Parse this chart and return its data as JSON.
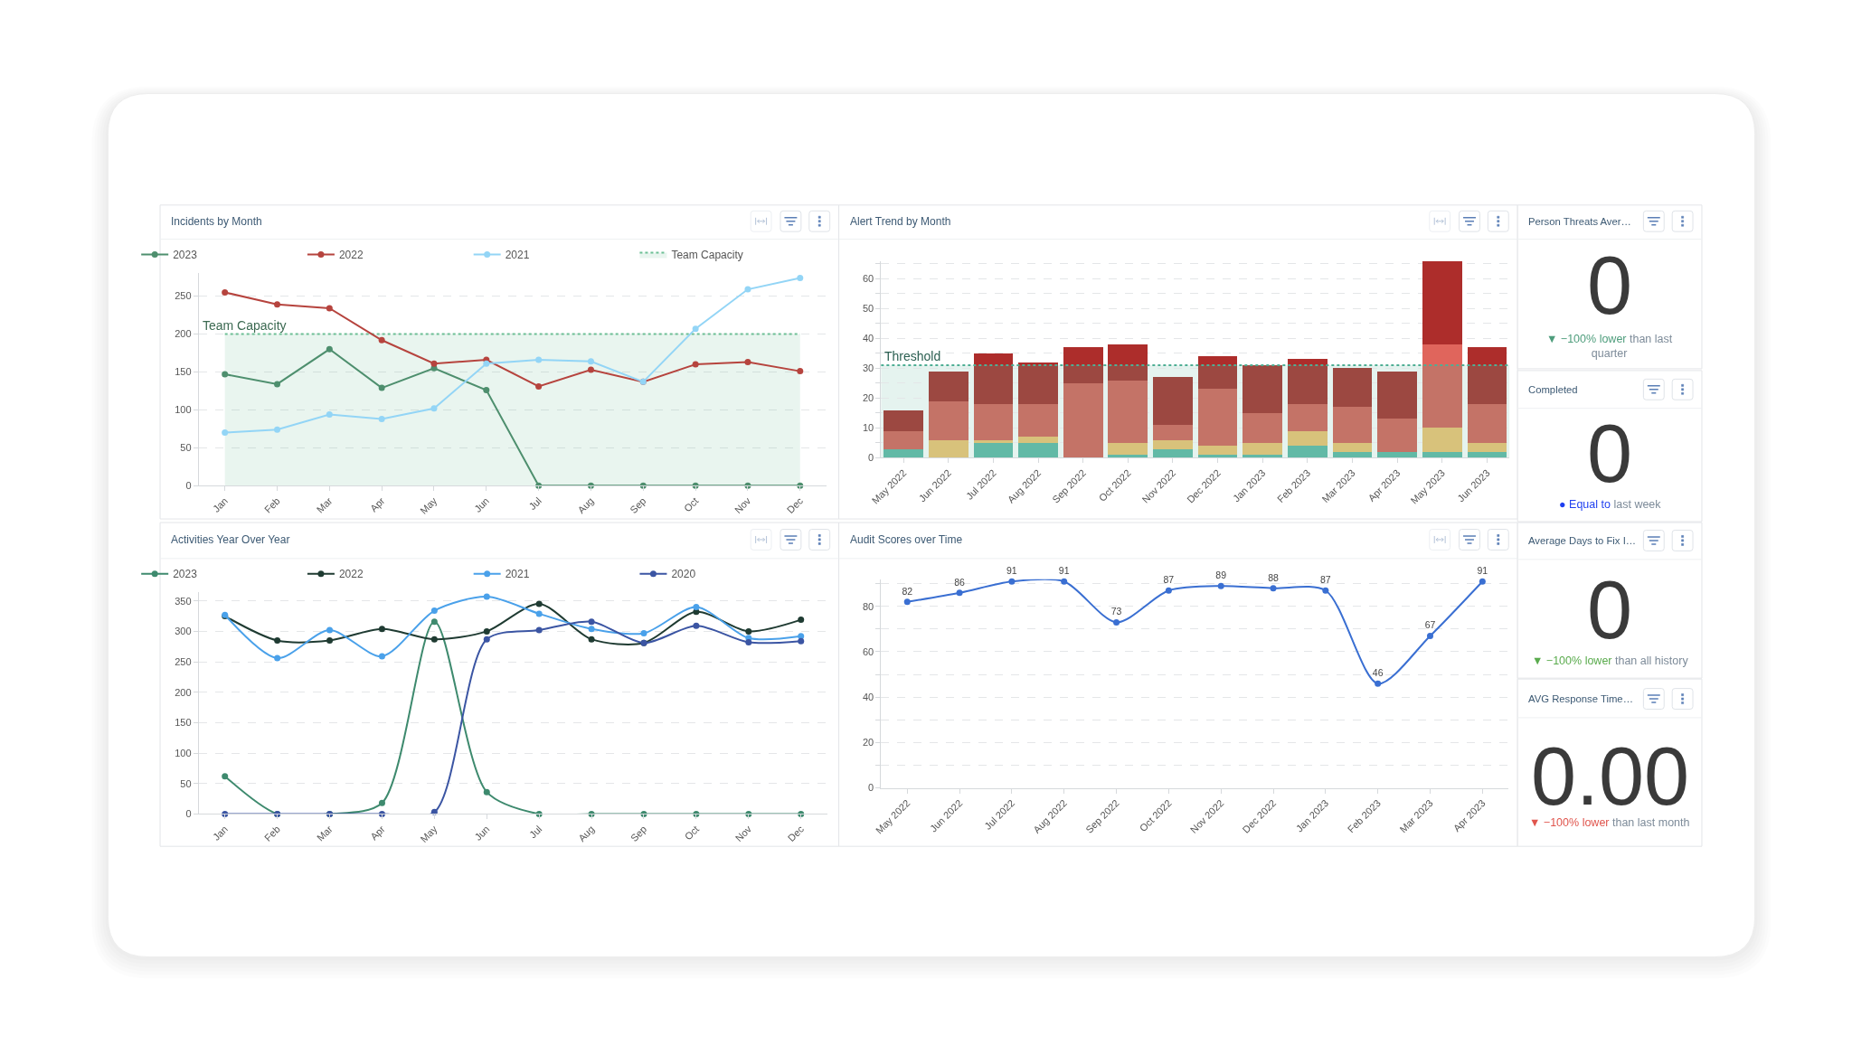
{
  "chart_data": [
    {
      "type": "line",
      "title": "Incidents by Month",
      "categories": [
        "Jan",
        "Feb",
        "Mar",
        "Apr",
        "May",
        "Jun",
        "Jul",
        "Aug",
        "Sep",
        "Oct",
        "Nov",
        "Dec"
      ],
      "series": [
        {
          "name": "2023",
          "color": "#4e8f6e",
          "values": [
            147,
            134,
            180,
            129,
            155,
            126,
            0,
            0,
            0,
            0,
            0,
            0
          ]
        },
        {
          "name": "2022",
          "color": "#b6443e",
          "values": [
            255,
            239,
            234,
            192,
            161,
            166,
            131,
            153,
            137,
            160,
            163,
            151
          ]
        },
        {
          "name": "2021",
          "color": "#93d5f6",
          "values": [
            70,
            74,
            94,
            88,
            102,
            161,
            166,
            164,
            137,
            207,
            259,
            274
          ]
        },
        {
          "name": "Team Capacity",
          "type": "area",
          "color": "#6dbf95",
          "line_style": "dotted",
          "marker": "none",
          "values": [
            200,
            200,
            200,
            200,
            200,
            200,
            200,
            200,
            200,
            200,
            200,
            200
          ]
        }
      ],
      "annotations": [
        {
          "text": "Team Capacity",
          "x": "Jan",
          "y": 200
        }
      ],
      "ylim": [
        0,
        280
      ],
      "yticks": [
        0,
        50,
        100,
        150,
        200,
        250
      ],
      "grid": "y",
      "legend": "top",
      "marker": "circle",
      "line_style": "solid"
    },
    {
      "type": "bar",
      "title": "Alert Trend by Month",
      "categories": [
        "May 2022",
        "Jun 2022",
        "Jul 2022",
        "Aug 2022",
        "Sep 2022",
        "Oct 2022",
        "Nov 2022",
        "Dec 2022",
        "Jan 2023",
        "Feb 2023",
        "Mar 2023",
        "Apr 2023",
        "May 2023",
        "Jun 2023"
      ],
      "stacked": true,
      "series": [
        {
          "color": "#62b9a6",
          "values": [
            3,
            null,
            5,
            5,
            null,
            1,
            3,
            1,
            1,
            4,
            2,
            2,
            2,
            2
          ]
        },
        {
          "color": "#d8c27b",
          "values": [
            null,
            6,
            1,
            2,
            null,
            4,
            3,
            3,
            4,
            5,
            3,
            null,
            8,
            3
          ]
        },
        {
          "color": "#c47367",
          "values": [
            6,
            13,
            12,
            11,
            25,
            21,
            5,
            19,
            10,
            9,
            12,
            11,
            21,
            13
          ]
        },
        {
          "color": "#e0655c",
          "values": [
            null,
            null,
            null,
            null,
            null,
            null,
            null,
            null,
            null,
            null,
            null,
            null,
            7,
            null
          ]
        },
        {
          "color": "#9c4841",
          "values": [
            7,
            10,
            13,
            13,
            6,
            5,
            16,
            8,
            16,
            13,
            13,
            16,
            null,
            13
          ]
        },
        {
          "color": "#ad2d2b",
          "values": [
            null,
            null,
            4,
            1,
            6,
            7,
            null,
            3,
            null,
            2,
            null,
            null,
            28,
            6
          ]
        }
      ],
      "bands": [
        {
          "axis": "y",
          "from": 0,
          "to": 31,
          "color": "#4fae94"
        }
      ],
      "ref_lines": [
        {
          "axis": "y",
          "value": 31,
          "label": "Threshold",
          "color": "#4fae94",
          "line_style": "dotted"
        }
      ],
      "ylim": [
        0,
        66
      ],
      "yticks": [
        0,
        {
          "value": 5,
          "label": null
        },
        10,
        {
          "value": 15,
          "label": null
        },
        20,
        {
          "value": 25,
          "label": null
        },
        30,
        {
          "value": 35,
          "label": null
        },
        40,
        {
          "value": 45,
          "label": null
        },
        50,
        {
          "value": 55,
          "label": null
        },
        60,
        {
          "value": 65,
          "label": null
        }
      ],
      "grid": "y"
    },
    {
      "type": "other",
      "title": "Person Threats Aver…",
      "annotations": [
        "0",
        "▼ −100% lower",
        "than last quarter"
      ],
      "color": "#4e9d7c"
    },
    {
      "type": "other",
      "title": "Completed",
      "annotations": [
        "0",
        "● Equal to",
        "last week"
      ],
      "color": "#1f3ff0"
    },
    {
      "type": "line",
      "title": "Activities Year Over Year",
      "categories": [
        "Jan",
        "Feb",
        "Mar",
        "Apr",
        "May",
        "Jun",
        "Jul",
        "Aug",
        "Sep",
        "Oct",
        "Nov",
        "Dec"
      ],
      "series": [
        {
          "name": "2023",
          "color": "#3e8a6e",
          "values": [
            62,
            0,
            0,
            18,
            316,
            36,
            0,
            0,
            0,
            0,
            0,
            0
          ]
        },
        {
          "name": "2022",
          "color": "#1f3b32",
          "values": [
            325,
            285,
            285,
            304,
            287,
            300,
            345,
            287,
            281,
            332,
            300,
            319
          ]
        },
        {
          "name": "2021",
          "color": "#4aa1ea",
          "values": [
            327,
            256,
            302,
            259,
            334,
            357,
            329,
            304,
            297,
            340,
            289,
            292
          ]
        },
        {
          "name": "2020",
          "color": "#3b55a3",
          "values": [
            0,
            0,
            0,
            0,
            3,
            287,
            302,
            316,
            281,
            309,
            282,
            284
          ]
        }
      ],
      "ylim": [
        0,
        365
      ],
      "yticks": [
        0,
        50,
        100,
        150,
        200,
        250,
        300,
        350
      ],
      "grid": "y",
      "legend": "top",
      "marker": "circle",
      "line_style": "solid"
    },
    {
      "type": "line",
      "title": "Audit Scores over Time",
      "categories": [
        "May 2022",
        "Jun 2022",
        "Jul 2022",
        "Aug 2022",
        "Sep 2022",
        "Oct 2022",
        "Nov 2022",
        "Dec 2022",
        "Jan 2023",
        "Feb 2023",
        "Mar 2023",
        "Apr 2023"
      ],
      "series": [
        {
          "color": "#3a6fd2",
          "values": [
            82,
            86,
            91,
            91,
            73,
            87,
            89,
            88,
            87,
            46,
            67,
            91
          ]
        }
      ],
      "ylim": [
        0,
        92
      ],
      "yticks": [
        0,
        {
          "value": 10,
          "label": null
        },
        20,
        {
          "value": 30,
          "label": null
        },
        40,
        {
          "value": 50,
          "label": null
        },
        60,
        {
          "value": 70,
          "label": null
        },
        80,
        {
          "value": 90,
          "label": null
        }
      ],
      "grid": "y",
      "marker": "circle",
      "line_style": "solid",
      "data_labels": true
    },
    {
      "type": "other",
      "title": "Average Days to Fix I…",
      "annotations": [
        "0",
        "▼ −100% lower",
        "than all history"
      ],
      "color": "#5aab4d"
    },
    {
      "type": "other",
      "title": "AVG Response Time…",
      "annotations": [
        "0.00",
        "▼ −100% lower",
        "than last month"
      ],
      "color": "#e0554d"
    }
  ]
}
